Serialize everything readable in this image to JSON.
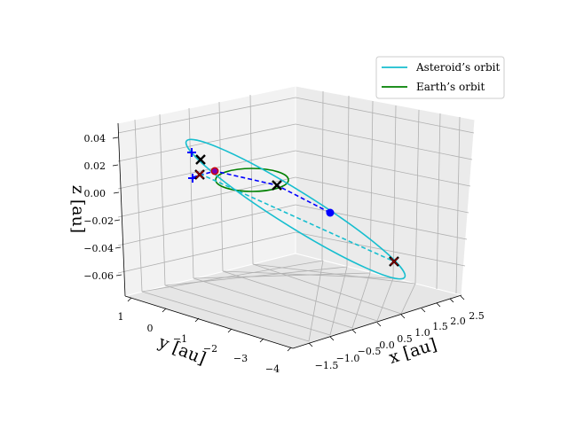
{
  "chart_data": {
    "type": "3d-line",
    "title": "",
    "xlabel": "x [au]",
    "ylabel": "y [au]",
    "zlabel": "z [au]",
    "xticks": [
      "−1.5",
      "−1.0",
      "−0.5",
      "0.0",
      "0.5",
      "1.0",
      "1.5",
      "2.0",
      "2.5"
    ],
    "yticks": [
      "1",
      "0",
      "−1",
      "−2",
      "−3",
      "−4"
    ],
    "zticks": [
      "0.04",
      "0.02",
      "0.00",
      "−0.02",
      "−0.04",
      "−0.06"
    ],
    "xlim": [
      -1.5,
      2.5
    ],
    "ylim": [
      -4,
      1
    ],
    "zlim": [
      -0.07,
      0.05
    ],
    "grid": true,
    "legend_location": "upper right",
    "series": [
      {
        "name": "Asteroid's orbit",
        "color": "#17becf",
        "style": "ellipse"
      },
      {
        "name": "Earth's orbit",
        "color": "#008000",
        "style": "ellipse"
      }
    ],
    "markers": [
      {
        "name": "asteroid-position",
        "marker": "dot",
        "color": "#0000ff"
      },
      {
        "name": "earth-position",
        "marker": "dot",
        "color": "#cc0000"
      },
      {
        "name": "sun",
        "marker": "x",
        "color": "#000000"
      },
      {
        "name": "node-upper",
        "marker": "x",
        "color": "#000000"
      },
      {
        "name": "node-lower",
        "marker": "x",
        "color": "#000000"
      },
      {
        "name": "perihelion",
        "marker": "x",
        "color": "#8b0000"
      },
      {
        "name": "aphelion",
        "marker": "x",
        "color": "#8b0000"
      },
      {
        "name": "plus-upper",
        "marker": "+",
        "color": "#0000ff"
      },
      {
        "name": "plus-lower",
        "marker": "+",
        "color": "#0000ff"
      }
    ]
  },
  "legend": {
    "items": [
      {
        "label": "Asteroid’s orbit",
        "color": "#17becf"
      },
      {
        "label": "Earth’s orbit",
        "color": "#008000"
      }
    ]
  }
}
